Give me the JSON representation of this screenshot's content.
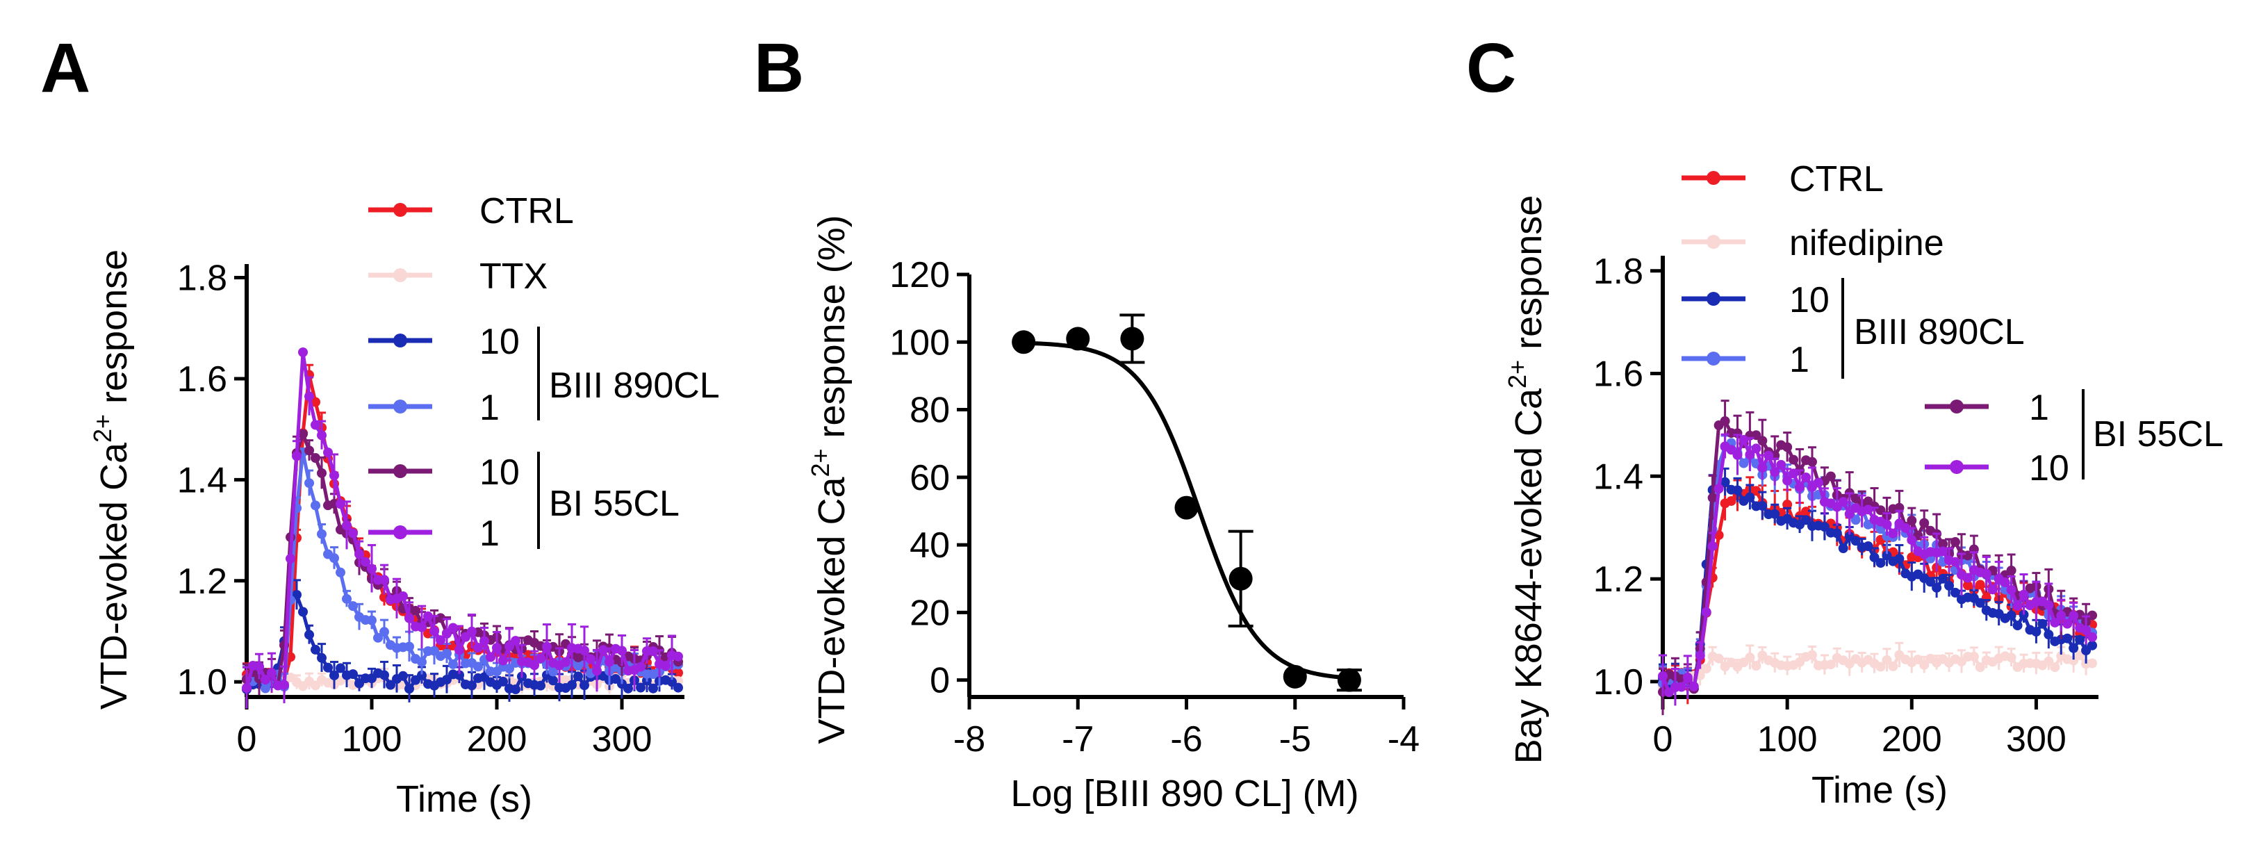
{
  "figure": {
    "panel_labels": [
      "A",
      "B",
      "C"
    ]
  },
  "colors": {
    "ctrl": "#ee1c25",
    "ttx": "#f8d7d5",
    "nifedipine": "#f8d7d5",
    "biii_10": "#1a2cb4",
    "biii_1": "#5b6ef0",
    "bi55_10": "#7a1a74",
    "bi55_1": "#a020e0",
    "fit": "#000000"
  },
  "chart_data": [
    {
      "id": "A",
      "type": "line",
      "title": "",
      "xlabel": "Time (s)",
      "ylabel": "VTD-evoked Ca",
      "ylabel_sup": "2+",
      "ylabel_suffix": " response",
      "xlim": [
        0,
        350
      ],
      "ylim": [
        0.97,
        1.82
      ],
      "xticks": [
        0,
        100,
        200,
        300
      ],
      "xtick_labels": [
        "0",
        "100",
        "200",
        "300"
      ],
      "yticks": [
        1.0,
        1.2,
        1.4,
        1.6,
        1.8
      ],
      "ytick_labels": [
        "1.0",
        "1.2",
        "1.4",
        "1.6",
        "1.8"
      ],
      "legend": {
        "entries": [
          {
            "label": "CTRL",
            "color_key": "ctrl"
          },
          {
            "label": "TTX",
            "color_key": "ttx"
          },
          {
            "label": "10",
            "color_key": "biii_10"
          },
          {
            "label": "1",
            "color_key": "biii_1"
          },
          {
            "label": "10",
            "color_key": "bi55_10"
          },
          {
            "label": "1",
            "color_key": "bi55_1"
          }
        ],
        "groups": [
          {
            "label": "BIII 890CL",
            "entries": [
              2,
              3
            ]
          },
          {
            "label": "BI 55CL",
            "entries": [
              4,
              5
            ]
          }
        ]
      },
      "series": [
        {
          "name": "CTRL",
          "color_key": "ctrl",
          "baseline": 1.01,
          "peak": 1.63,
          "peak_time": 48,
          "tau": 45,
          "plateau": 1.03,
          "error": 0.025
        },
        {
          "name": "TTX",
          "color_key": "ttx",
          "baseline": 1.0,
          "peak": 1.0,
          "peak_time": 40,
          "tau": 30,
          "plateau": 1.0,
          "error": 0.015
        },
        {
          "name": "BIII 890CL 10",
          "color_key": "biii_10",
          "baseline": 1.0,
          "peak": 1.21,
          "peak_time": 38,
          "tau": 15,
          "plateau": 1.0,
          "error": 0.025
        },
        {
          "name": "BIII 890CL 1",
          "color_key": "biii_1",
          "baseline": 1.0,
          "peak": 1.47,
          "peak_time": 44,
          "tau": 33,
          "plateau": 1.03,
          "error": 0.025
        },
        {
          "name": "BI 55CL 10",
          "color_key": "bi55_10",
          "baseline": 1.01,
          "peak": 1.53,
          "peak_time": 42,
          "tau": 55,
          "plateau": 1.05,
          "error": 0.03
        },
        {
          "name": "BI 55CL 1",
          "color_key": "bi55_1",
          "baseline": 1.01,
          "peak": 1.65,
          "peak_time": 44,
          "tau": 48,
          "plateau": 1.04,
          "error": 0.04
        }
      ]
    },
    {
      "id": "B",
      "type": "scatter",
      "title": "",
      "xlabel": "Log [BIII 890 CL] (M)",
      "ylabel": "VTD-evoked Ca",
      "ylabel_sup": "2+",
      "ylabel_suffix": " response (%)",
      "xlim": [
        -8,
        -4
      ],
      "ylim": [
        -5,
        120
      ],
      "xticks": [
        -8,
        -7,
        -6,
        -5,
        -4
      ],
      "xtick_labels": [
        "-8",
        "-7",
        "-6",
        "-5",
        "-4"
      ],
      "yticks": [
        0,
        20,
        40,
        60,
        80,
        100,
        120
      ],
      "ytick_labels": [
        "0",
        "20",
        "40",
        "60",
        "80",
        "100",
        "120"
      ],
      "points": [
        {
          "x": -7.5,
          "y": 100,
          "err": 0
        },
        {
          "x": -7.0,
          "y": 101,
          "err": 0
        },
        {
          "x": -6.5,
          "y": 101,
          "err": 7
        },
        {
          "x": -6.0,
          "y": 51,
          "err": 0
        },
        {
          "x": -5.5,
          "y": 30,
          "err": 14
        },
        {
          "x": -5.0,
          "y": 1,
          "err": 0
        },
        {
          "x": -4.5,
          "y": 0,
          "err": 3
        }
      ],
      "fit": {
        "type": "sigmoid",
        "top": 100,
        "bottom": 0,
        "logIC50": -5.88,
        "hill": 1.6,
        "x_range": [
          -7.5,
          -4.5
        ]
      }
    },
    {
      "id": "C",
      "type": "line",
      "title": "",
      "xlabel": "Time (s)",
      "ylabel": "Bay K8644-evoked Ca",
      "ylabel_sup": "2+",
      "ylabel_suffix": " response",
      "xlim": [
        0,
        350
      ],
      "ylim": [
        0.97,
        1.82
      ],
      "xticks": [
        0,
        100,
        200,
        300
      ],
      "xtick_labels": [
        "0",
        "100",
        "200",
        "300"
      ],
      "yticks": [
        1.0,
        1.2,
        1.4,
        1.6,
        1.8
      ],
      "ytick_labels": [
        "1.0",
        "1.2",
        "1.4",
        "1.6",
        "1.8"
      ],
      "legend": {
        "entries": [
          {
            "label": "CTRL",
            "color_key": "ctrl"
          },
          {
            "label": "nifedipine",
            "color_key": "nifedipine"
          },
          {
            "label": "10",
            "color_key": "biii_10"
          },
          {
            "label": "1",
            "color_key": "biii_1"
          },
          {
            "label": "1",
            "color_key": "bi55_10"
          },
          {
            "label": "10",
            "color_key": "bi55_1"
          }
        ],
        "groups": [
          {
            "label": "BIII 890CL",
            "entries": [
              2,
              3
            ]
          },
          {
            "label": "BI 55CL",
            "entries": [
              4,
              5
            ]
          }
        ]
      },
      "series": [
        {
          "name": "CTRL",
          "color_key": "ctrl",
          "baseline": 1.0,
          "peak": 1.37,
          "peak_time": 60,
          "end": 1.1,
          "error": 0.03
        },
        {
          "name": "nifedipine",
          "color_key": "nifedipine",
          "baseline": 1.0,
          "peak": 1.04,
          "peak_time": 45,
          "end": 1.04,
          "error": 0.02
        },
        {
          "name": "BIII 890CL 10",
          "color_key": "biii_10",
          "baseline": 1.0,
          "peak": 1.38,
          "peak_time": 45,
          "end": 1.06,
          "error": 0.025
        },
        {
          "name": "BIII 890CL 1",
          "color_key": "biii_1",
          "baseline": 1.0,
          "peak": 1.45,
          "peak_time": 55,
          "end": 1.1,
          "error": 0.03
        },
        {
          "name": "BI 55CL 1",
          "color_key": "bi55_10",
          "baseline": 1.0,
          "peak": 1.5,
          "peak_time": 55,
          "end": 1.11,
          "error": 0.04
        },
        {
          "name": "BI 55CL 10",
          "color_key": "bi55_1",
          "baseline": 1.0,
          "peak": 1.46,
          "peak_time": 60,
          "end": 1.09,
          "error": 0.035
        }
      ]
    }
  ]
}
